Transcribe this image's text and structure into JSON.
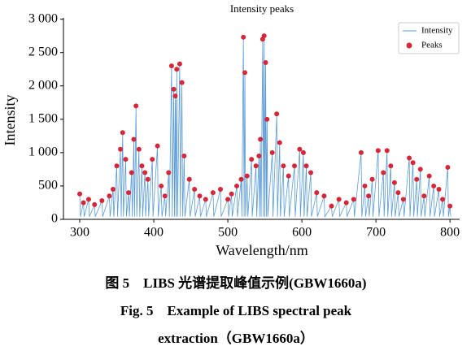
{
  "chart_data": {
    "type": "line",
    "title": "Intensity peaks",
    "xlabel": "Wavelength/nm",
    "ylabel": "Intensity",
    "xlim": [
      278,
      813
    ],
    "xticks": [
      300,
      400,
      500,
      600,
      700,
      800
    ],
    "ylim": [
      0,
      3020
    ],
    "yticks": [
      0,
      500,
      {
        "value": 1000,
        "label": "1 000"
      },
      {
        "value": 1500,
        "label": "1 500"
      },
      {
        "value": 2000,
        "label": "2 000"
      },
      {
        "value": 2500,
        "label": "2 500"
      },
      {
        "value": 3000,
        "label": "3 000"
      }
    ],
    "legend": "upper right",
    "series": [
      {
        "name": "Intensity",
        "color": "#5b9bd5",
        "mode": "line",
        "x": [
          300,
          301,
          305,
          306,
          312,
          313,
          320,
          321,
          330,
          331,
          340,
          341,
          345,
          346,
          350,
          351,
          355,
          356,
          358,
          359,
          362,
          363,
          366,
          367,
          370,
          371,
          373,
          374,
          376,
          377,
          380,
          381,
          384,
          385,
          388,
          389,
          392,
          393,
          398,
          399,
          405,
          406,
          410,
          411,
          415,
          416,
          420,
          421,
          424,
          425,
          427,
          428,
          429,
          430,
          431,
          432,
          435,
          436,
          438,
          439,
          441,
          442,
          448,
          449,
          455,
          456,
          462,
          463,
          470,
          471,
          480,
          481,
          490,
          491,
          500,
          501,
          505,
          506,
          512,
          513,
          518,
          519,
          521,
          522,
          523,
          524,
          526,
          527,
          532,
          533,
          538,
          539,
          542,
          543,
          544,
          545,
          547,
          548,
          549,
          550,
          551,
          552,
          553,
          554,
          560,
          561,
          566,
          567,
          570,
          571,
          575,
          576,
          582,
          583,
          590,
          591,
          597,
          598,
          602,
          603,
          606,
          607,
          612,
          613,
          620,
          621,
          630,
          631,
          640,
          641,
          650,
          651,
          660,
          661,
          670,
          671,
          680,
          681,
          685,
          686,
          690,
          691,
          695,
          696,
          703,
          704,
          710,
          711,
          715,
          716,
          720,
          721,
          725,
          726,
          730,
          731,
          737,
          738,
          745,
          746,
          750,
          751,
          755,
          756,
          760,
          761,
          765,
          766,
          772,
          773,
          778,
          779,
          785,
          786,
          790,
          791,
          797,
          798,
          800,
          801
        ],
        "values": [
          380,
          40,
          250,
          40,
          300,
          40,
          220,
          40,
          280,
          40,
          350,
          40,
          450,
          40,
          800,
          40,
          1050,
          40,
          1300,
          40,
          900,
          40,
          400,
          40,
          700,
          40,
          1200,
          40,
          1700,
          40,
          1050,
          40,
          800,
          40,
          700,
          40,
          600,
          40,
          900,
          40,
          1100,
          40,
          500,
          40,
          350,
          40,
          700,
          40,
          2300,
          40,
          1950,
          40,
          1850,
          40,
          2250,
          40,
          2330,
          40,
          2050,
          40,
          950,
          40,
          600,
          40,
          450,
          40,
          350,
          40,
          300,
          40,
          400,
          40,
          450,
          40,
          300,
          40,
          380,
          40,
          500,
          40,
          600,
          40,
          2730,
          40,
          2200,
          40,
          650,
          40,
          900,
          40,
          800,
          40,
          950,
          40,
          1200,
          40,
          2700,
          40,
          2750,
          40,
          2350,
          40,
          1500,
          40,
          1000,
          40,
          1580,
          40,
          1150,
          40,
          800,
          40,
          650,
          40,
          800,
          40,
          1050,
          40,
          1000,
          40,
          800,
          40,
          700,
          40,
          400,
          40,
          350,
          40,
          200,
          40,
          300,
          40,
          250,
          40,
          300,
          40,
          1000,
          40,
          500,
          40,
          350,
          40,
          600,
          40,
          1030,
          40,
          700,
          40,
          1030,
          40,
          800,
          40,
          550,
          40,
          400,
          40,
          300,
          40,
          920,
          40,
          850,
          40,
          600,
          40,
          750,
          40,
          350,
          40,
          650,
          40,
          500,
          40,
          450,
          40,
          300,
          40,
          780,
          40,
          200,
          40
        ]
      },
      {
        "name": "Peaks",
        "color": "#d62738",
        "mode": "markers",
        "x": [
          300,
          305,
          312,
          320,
          330,
          340,
          345,
          350,
          355,
          358,
          362,
          366,
          370,
          373,
          376,
          380,
          384,
          388,
          392,
          398,
          405,
          410,
          415,
          420,
          424,
          427,
          429,
          431,
          435,
          438,
          441,
          448,
          455,
          462,
          470,
          480,
          490,
          500,
          505,
          512,
          518,
          521,
          523,
          526,
          532,
          538,
          542,
          544,
          547,
          549,
          551,
          553,
          560,
          566,
          570,
          575,
          582,
          590,
          597,
          602,
          606,
          612,
          620,
          630,
          640,
          650,
          660,
          670,
          680,
          685,
          690,
          695,
          703,
          710,
          715,
          720,
          725,
          730,
          737,
          745,
          750,
          755,
          760,
          765,
          772,
          778,
          785,
          790,
          797,
          800
        ],
        "values": [
          380,
          250,
          300,
          220,
          280,
          350,
          450,
          800,
          1050,
          1300,
          900,
          400,
          700,
          1200,
          1700,
          1050,
          800,
          700,
          600,
          900,
          1100,
          500,
          350,
          700,
          2300,
          1950,
          1850,
          2250,
          2330,
          2050,
          950,
          600,
          450,
          350,
          300,
          400,
          450,
          300,
          380,
          500,
          600,
          2730,
          2200,
          650,
          900,
          800,
          950,
          1200,
          2700,
          2750,
          2350,
          1500,
          1000,
          1580,
          1150,
          800,
          650,
          800,
          1050,
          1000,
          800,
          700,
          400,
          350,
          200,
          300,
          250,
          300,
          1000,
          500,
          350,
          600,
          1030,
          700,
          1030,
          800,
          550,
          400,
          300,
          920,
          850,
          600,
          750,
          350,
          650,
          500,
          450,
          300,
          780,
          200
        ]
      }
    ]
  },
  "caption": [
    "图 5　LIBS 光谱提取峰值示例(GBW1660a)",
    "Fig. 5　Example of LIBS spectral peak",
    "extraction（GBW1660a）"
  ]
}
